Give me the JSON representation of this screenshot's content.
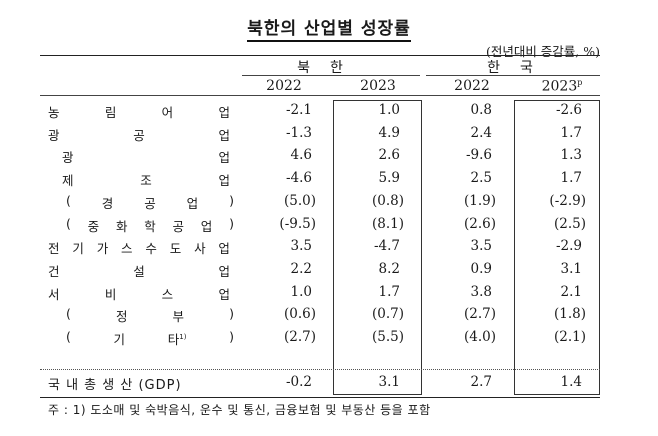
{
  "title": "북한의 산업별 성장률",
  "unit": "(전년대비 증감률, %)",
  "groups": [
    {
      "label": "북한",
      "years": [
        "2022",
        "2023"
      ]
    },
    {
      "label": "한국",
      "years": [
        "2022",
        "2023"
      ],
      "last_year_suffix": "p"
    }
  ],
  "rows": [
    {
      "chars": [
        "농",
        "림",
        "어",
        "업"
      ],
      "indent": 0,
      "paren": false,
      "values": [
        "-2.1",
        "1.0",
        "0.8",
        "-2.6"
      ]
    },
    {
      "chars": [
        "광",
        "공",
        "업"
      ],
      "indent": 0,
      "paren": false,
      "values": [
        "-1.3",
        "4.9",
        "2.4",
        "1.7"
      ]
    },
    {
      "chars": [
        "광",
        "업"
      ],
      "indent": 1,
      "paren": false,
      "values": [
        "4.6",
        "2.6",
        "-9.6",
        "1.3"
      ]
    },
    {
      "chars": [
        "제",
        "조",
        "업"
      ],
      "indent": 1,
      "paren": false,
      "values": [
        "-4.6",
        "5.9",
        "2.5",
        "1.7"
      ]
    },
    {
      "chars": [
        "(",
        "경",
        "공",
        "업",
        ")"
      ],
      "indent": 2,
      "paren": true,
      "values": [
        "(5.0)",
        "(0.8)",
        "(1.9)",
        "(-2.9)"
      ]
    },
    {
      "chars": [
        "(",
        "중",
        "화",
        "학",
        "공",
        "업",
        ")"
      ],
      "indent": 2,
      "paren": true,
      "values": [
        "(-9.5)",
        "(8.1)",
        "(2.6)",
        "(2.5)"
      ]
    },
    {
      "chars": [
        "전",
        "기",
        "가",
        "스",
        "수",
        "도",
        "사",
        "업"
      ],
      "indent": 0,
      "paren": false,
      "values": [
        "3.5",
        "-4.7",
        "3.5",
        "-2.9"
      ]
    },
    {
      "chars": [
        "건",
        "설",
        "업"
      ],
      "indent": 0,
      "paren": false,
      "values": [
        "2.2",
        "8.2",
        "0.9",
        "3.1"
      ]
    },
    {
      "chars": [
        "서",
        "비",
        "스",
        "업"
      ],
      "indent": 0,
      "paren": false,
      "values": [
        "1.0",
        "1.7",
        "3.8",
        "2.1"
      ]
    },
    {
      "chars": [
        "(",
        "정",
        "부",
        ")"
      ],
      "indent": 2,
      "paren": true,
      "values": [
        "(0.6)",
        "(0.7)",
        "(2.7)",
        "(1.8)"
      ]
    },
    {
      "chars": [
        "(",
        "기",
        "타1)",
        ")"
      ],
      "indent": 2,
      "paren": true,
      "footnote": "1)",
      "values": [
        "(2.7)",
        "(5.5)",
        "(4.0)",
        "(2.1)"
      ]
    }
  ],
  "gdp_row": {
    "label": "국 내 총 생 산 (GDP)",
    "values": [
      "-0.2",
      "3.1",
      "2.7",
      "1.4"
    ]
  },
  "note": "주 : 1) 도소매 및 숙박음식, 운수 및 통신, 금융보험 및 부동산 등을 포함"
}
